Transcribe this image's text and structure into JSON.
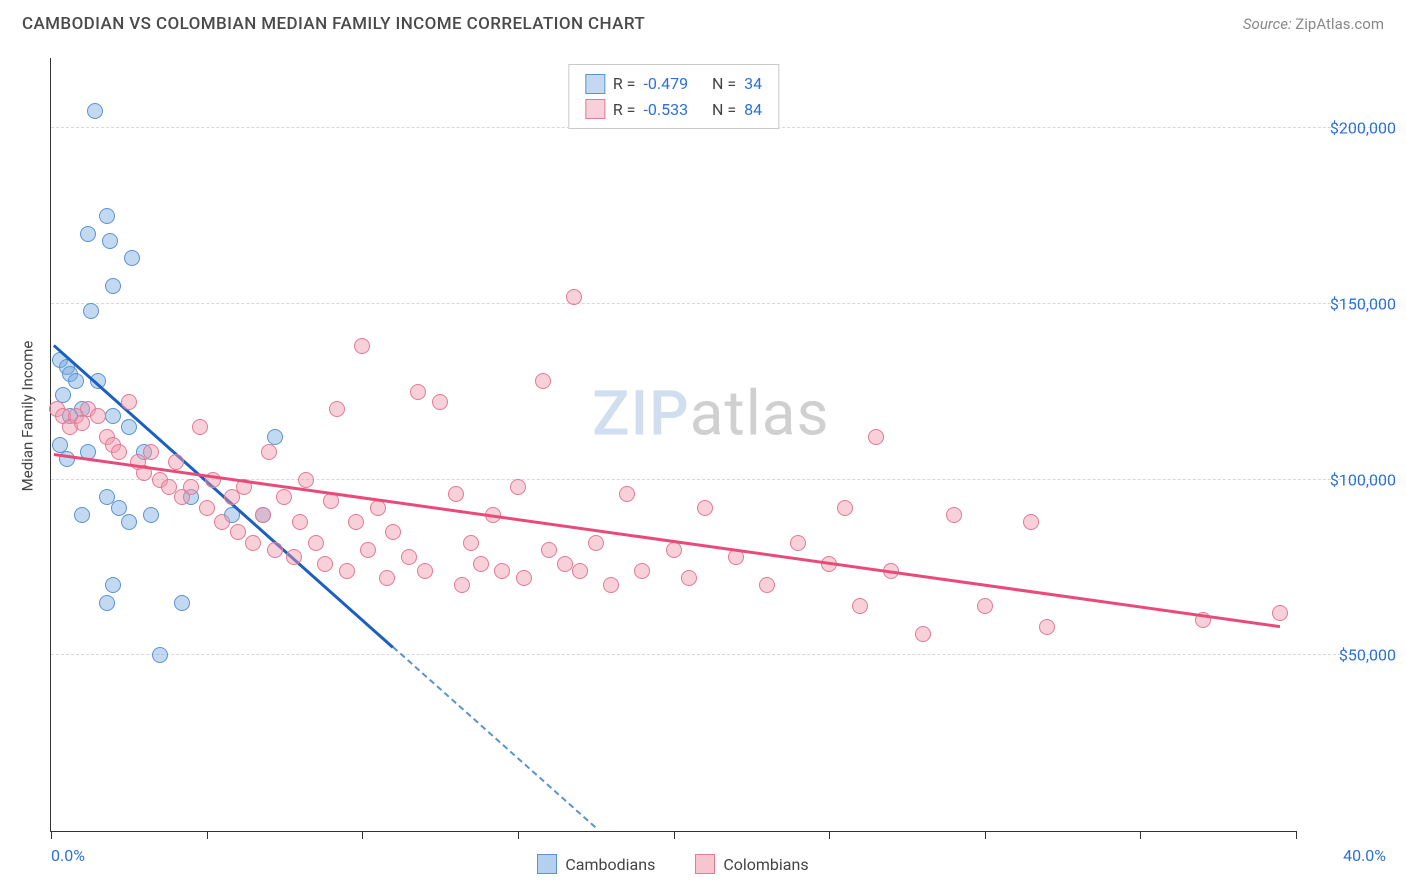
{
  "header": {
    "title": "CAMBODIAN VS COLOMBIAN MEDIAN FAMILY INCOME CORRELATION CHART",
    "source_label": "Source:",
    "source_name": "ZipAtlas.com"
  },
  "watermark": {
    "part1": "ZIP",
    "part2": "atlas"
  },
  "chart": {
    "type": "scatter",
    "ylabel": "Median Family Income",
    "xlim": [
      0,
      40
    ],
    "ylim": [
      0,
      220000
    ],
    "x_start_label": "0.0%",
    "x_end_label": "40.0%",
    "x_ticks": [
      0,
      5,
      10,
      15,
      20,
      25,
      30,
      35,
      40
    ],
    "y_gridlines": [
      50000,
      100000,
      150000,
      200000
    ],
    "y_tick_labels": [
      "$50,000",
      "$100,000",
      "$150,000",
      "$200,000"
    ],
    "grid_color": "#d8d8d8",
    "axis_color": "#333333",
    "background_color": "#ffffff",
    "tick_label_color": "#2b71d9",
    "point_radius": 8,
    "series": [
      {
        "name": "Cambodians",
        "fill": "rgba(120,170,225,0.45)",
        "stroke": "#5a94cf",
        "trend_color": "#1b5fbf",
        "trend": {
          "x1": 0.1,
          "y1": 138000,
          "x2": 11.0,
          "y2": 52000,
          "dash_to_x": 17.5
        },
        "r_label": "R =",
        "r_value": "-0.479",
        "n_label": "N =",
        "n_value": "34",
        "points": [
          [
            1.4,
            205000
          ],
          [
            1.8,
            175000
          ],
          [
            1.2,
            170000
          ],
          [
            1.9,
            168000
          ],
          [
            2.6,
            163000
          ],
          [
            2.0,
            155000
          ],
          [
            1.3,
            148000
          ],
          [
            0.3,
            134000
          ],
          [
            0.5,
            132000
          ],
          [
            0.6,
            130000
          ],
          [
            0.8,
            128000
          ],
          [
            1.5,
            128000
          ],
          [
            0.4,
            124000
          ],
          [
            1.0,
            120000
          ],
          [
            0.6,
            118000
          ],
          [
            2.0,
            118000
          ],
          [
            2.5,
            115000
          ],
          [
            0.3,
            110000
          ],
          [
            1.2,
            108000
          ],
          [
            3.0,
            108000
          ],
          [
            0.5,
            106000
          ],
          [
            1.8,
            95000
          ],
          [
            2.2,
            92000
          ],
          [
            1.0,
            90000
          ],
          [
            3.2,
            90000
          ],
          [
            2.5,
            88000
          ],
          [
            4.5,
            95000
          ],
          [
            5.8,
            90000
          ],
          [
            6.8,
            90000
          ],
          [
            7.2,
            112000
          ],
          [
            2.0,
            70000
          ],
          [
            1.8,
            65000
          ],
          [
            4.2,
            65000
          ],
          [
            3.5,
            50000
          ]
        ]
      },
      {
        "name": "Colombians",
        "fill": "rgba(240,150,170,0.45)",
        "stroke": "#e27a95",
        "trend_color": "#e84b7a",
        "trend": {
          "x1": 0.1,
          "y1": 107000,
          "x2": 39.5,
          "y2": 58000
        },
        "r_label": "R =",
        "r_value": "-0.533",
        "n_label": "N =",
        "n_value": "84",
        "points": [
          [
            0.2,
            120000
          ],
          [
            0.4,
            118000
          ],
          [
            0.6,
            115000
          ],
          [
            0.8,
            118000
          ],
          [
            1.0,
            116000
          ],
          [
            1.2,
            120000
          ],
          [
            1.5,
            118000
          ],
          [
            1.8,
            112000
          ],
          [
            2.0,
            110000
          ],
          [
            2.2,
            108000
          ],
          [
            2.5,
            122000
          ],
          [
            2.8,
            105000
          ],
          [
            3.0,
            102000
          ],
          [
            3.2,
            108000
          ],
          [
            3.5,
            100000
          ],
          [
            3.8,
            98000
          ],
          [
            4.0,
            105000
          ],
          [
            4.2,
            95000
          ],
          [
            4.5,
            98000
          ],
          [
            4.8,
            115000
          ],
          [
            5.0,
            92000
          ],
          [
            5.2,
            100000
          ],
          [
            5.5,
            88000
          ],
          [
            5.8,
            95000
          ],
          [
            6.0,
            85000
          ],
          [
            6.2,
            98000
          ],
          [
            6.5,
            82000
          ],
          [
            6.8,
            90000
          ],
          [
            7.0,
            108000
          ],
          [
            7.2,
            80000
          ],
          [
            7.5,
            95000
          ],
          [
            7.8,
            78000
          ],
          [
            8.0,
            88000
          ],
          [
            8.2,
            100000
          ],
          [
            8.5,
            82000
          ],
          [
            8.8,
            76000
          ],
          [
            9.0,
            94000
          ],
          [
            9.2,
            120000
          ],
          [
            9.5,
            74000
          ],
          [
            9.8,
            88000
          ],
          [
            10.0,
            138000
          ],
          [
            10.2,
            80000
          ],
          [
            10.5,
            92000
          ],
          [
            10.8,
            72000
          ],
          [
            11.0,
            85000
          ],
          [
            11.5,
            78000
          ],
          [
            11.8,
            125000
          ],
          [
            12.0,
            74000
          ],
          [
            12.5,
            122000
          ],
          [
            13.0,
            96000
          ],
          [
            13.2,
            70000
          ],
          [
            13.5,
            82000
          ],
          [
            13.8,
            76000
          ],
          [
            14.2,
            90000
          ],
          [
            14.5,
            74000
          ],
          [
            15.0,
            98000
          ],
          [
            15.2,
            72000
          ],
          [
            15.8,
            128000
          ],
          [
            16.0,
            80000
          ],
          [
            16.5,
            76000
          ],
          [
            16.8,
            152000
          ],
          [
            17.0,
            74000
          ],
          [
            17.5,
            82000
          ],
          [
            18.0,
            70000
          ],
          [
            18.5,
            96000
          ],
          [
            19.0,
            74000
          ],
          [
            20.0,
            80000
          ],
          [
            20.5,
            72000
          ],
          [
            21.0,
            92000
          ],
          [
            22.0,
            78000
          ],
          [
            23.0,
            70000
          ],
          [
            24.0,
            82000
          ],
          [
            25.0,
            76000
          ],
          [
            25.5,
            92000
          ],
          [
            26.0,
            64000
          ],
          [
            26.5,
            112000
          ],
          [
            27.0,
            74000
          ],
          [
            28.0,
            56000
          ],
          [
            29.0,
            90000
          ],
          [
            30.0,
            64000
          ],
          [
            31.5,
            88000
          ],
          [
            32.0,
            58000
          ],
          [
            37.0,
            60000
          ],
          [
            39.5,
            62000
          ]
        ]
      }
    ]
  },
  "bottom_legend": {
    "items": [
      {
        "label": "Cambodians",
        "fill": "rgba(120,170,225,0.55)",
        "stroke": "#5a94cf"
      },
      {
        "label": "Colombians",
        "fill": "rgba(240,150,170,0.55)",
        "stroke": "#e27a95"
      }
    ]
  }
}
